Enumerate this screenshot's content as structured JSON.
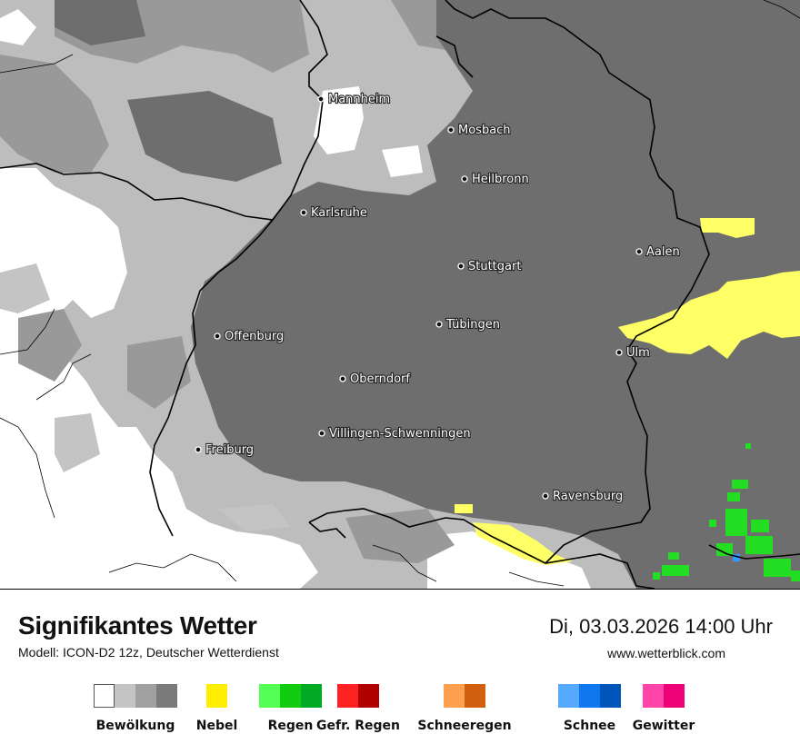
{
  "map": {
    "cities": [
      {
        "name": "Mannheim"
      },
      {
        "name": "Mosbach"
      },
      {
        "name": "Heilbronn"
      },
      {
        "name": "Karlsruhe"
      },
      {
        "name": "Aalen"
      },
      {
        "name": "Stuttgart"
      },
      {
        "name": "Tübingen"
      },
      {
        "name": "Offenburg"
      },
      {
        "name": "Ulm"
      },
      {
        "name": "Oberndorf"
      },
      {
        "name": "Villingen-Schwenningen"
      },
      {
        "name": "Freiburg"
      },
      {
        "name": "Ravensburg"
      }
    ],
    "colors": {
      "cloud_dark": "#6e6e6e",
      "cloud_mid": "#999999",
      "cloud_light": "#bdbdbd",
      "clear": "#ffffff",
      "fog": "#ffff66",
      "rain": "#22dd22"
    }
  },
  "footer": {
    "title": "Signifikantes Wetter",
    "model": "Modell: ICON-D2 12z, Deutscher Wetterdienst",
    "datetime": "Di, 03.03.2026 14:00 Uhr",
    "website": "www.wetterblick.com"
  },
  "legend": [
    {
      "label": "Bewölkung",
      "colors": [
        "#ffffff",
        "#c4c4c4",
        "#a0a0a0",
        "#7a7a7a"
      ]
    },
    {
      "label": "Nebel",
      "colors": [
        "#ffee00"
      ]
    },
    {
      "label": "Regen",
      "colors": [
        "#55ff55",
        "#11cc11",
        "#00aa22"
      ]
    },
    {
      "label": "Gefr. Regen",
      "colors": [
        "#ff2222",
        "#b00000"
      ]
    },
    {
      "label": "Schneeregen",
      "colors": [
        "#ffa050",
        "#d06010"
      ]
    },
    {
      "label": "Schnee",
      "colors": [
        "#55aaff",
        "#1177ee",
        "#0055bb"
      ]
    },
    {
      "label": "Gewitter",
      "colors": [
        "#ff44aa",
        "#ee0077"
      ]
    }
  ]
}
